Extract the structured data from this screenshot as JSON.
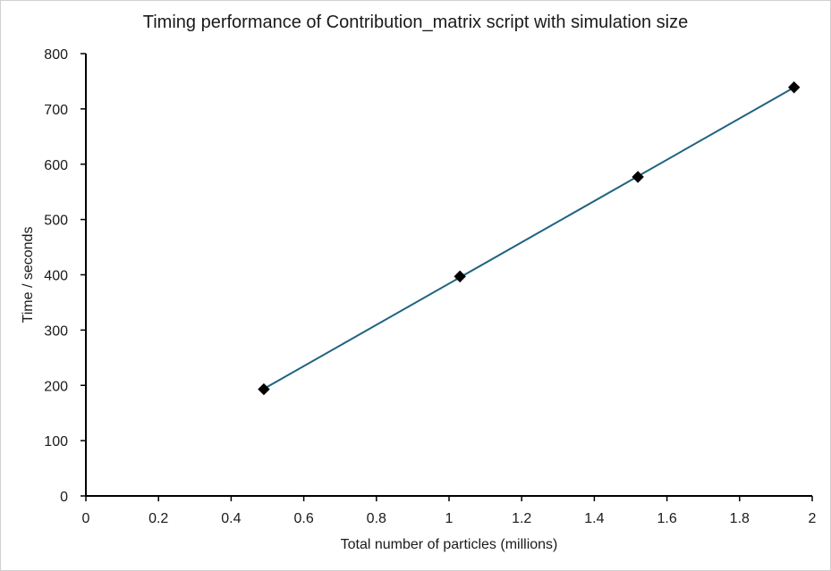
{
  "chart_data": {
    "type": "scatter",
    "title": "Timing performance of Contribution_matrix script with simulation size",
    "xlabel": "Total number of particles (millions)",
    "ylabel": "Time / seconds",
    "xlim": [
      0,
      2
    ],
    "ylim": [
      0,
      800
    ],
    "xticks": [
      0,
      0.2,
      0.4,
      0.6,
      0.8,
      1,
      1.2,
      1.4,
      1.6,
      1.8,
      2
    ],
    "yticks": [
      0,
      100,
      200,
      300,
      400,
      500,
      600,
      700,
      800
    ],
    "grid": false,
    "legend": "none",
    "series": [
      {
        "x": [
          0.49,
          1.03,
          1.52,
          1.95
        ],
        "y": [
          193,
          397,
          577,
          739
        ],
        "marker_color": "#000000",
        "line_color": "#1f6380",
        "trendline": "linear"
      }
    ]
  }
}
